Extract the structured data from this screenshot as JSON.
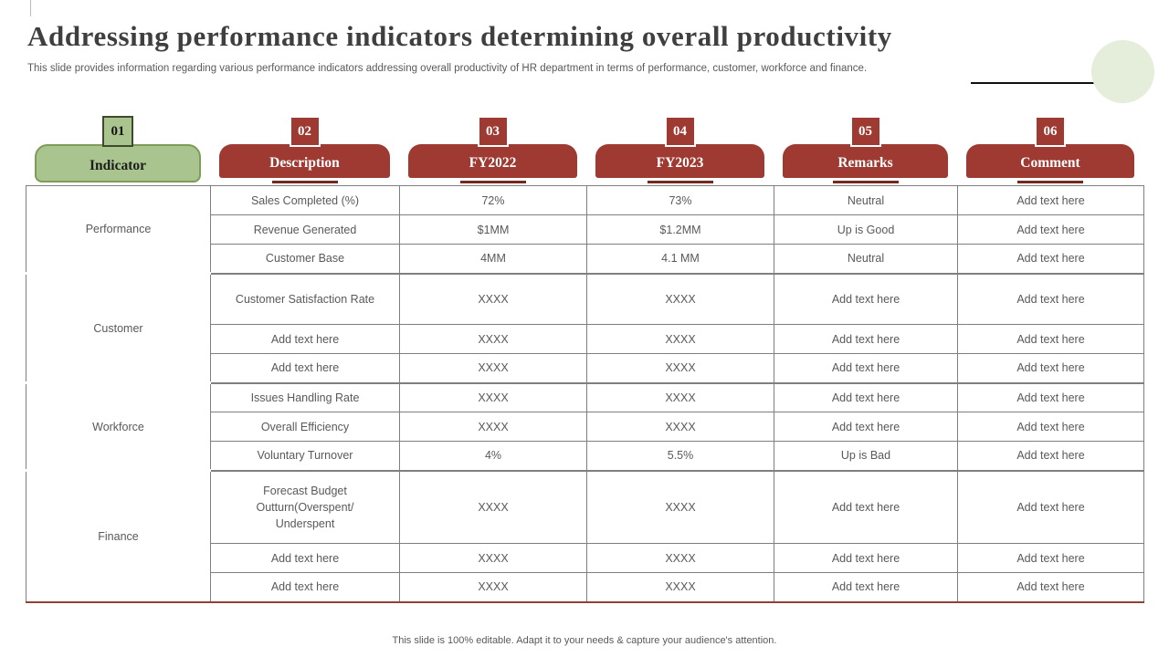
{
  "slide": {
    "title": "Addressing performance indicators determining overall productivity",
    "subtitle": "This slide provides information regarding various performance indicators addressing overall productivity of HR department in terms of performance, customer, workforce and finance.",
    "footer": "This slide is 100% editable. Adapt it to your needs & capture your audience's attention."
  },
  "colors": {
    "brick_red": "#9e3a32",
    "red_underline": "#75281f",
    "green_header": "#a9c48e",
    "green_header_border": "#7e9c58",
    "green_cell": "#afc897",
    "body_text_gray": "#595959",
    "grid_border_gray": "#7f7f7f",
    "table_bottom_maroon": "#8c4139",
    "circle_green": "#e4eeda",
    "title_gray": "#3f3f3f"
  },
  "table": {
    "columns": [
      {
        "number": "01",
        "label": "Indicator",
        "style": "green"
      },
      {
        "number": "02",
        "label": "Description",
        "style": "red"
      },
      {
        "number": "03",
        "label": "FY2022",
        "style": "red"
      },
      {
        "number": "04",
        "label": "FY2023",
        "style": "red"
      },
      {
        "number": "05",
        "label": "Remarks",
        "style": "red"
      },
      {
        "number": "06",
        "label": "Comment",
        "style": "red"
      }
    ],
    "groups": [
      {
        "indicator": "Performance",
        "rows": [
          {
            "description": "Sales Completed (%)",
            "fy2022": "72%",
            "fy2023": "73%",
            "remarks": "Neutral",
            "comment": "Add text here"
          },
          {
            "description": "Revenue Generated",
            "fy2022": "$1MM",
            "fy2023": "$1.2MM",
            "remarks": "Up is Good",
            "comment": "Add text here"
          },
          {
            "description": "Customer Base",
            "fy2022": "4MM",
            "fy2023": "4.1 MM",
            "remarks": "Neutral",
            "comment": "Add text here"
          }
        ]
      },
      {
        "indicator": "Customer",
        "rows": [
          {
            "description": "Customer Satisfaction Rate",
            "fy2022": "XXXX",
            "fy2023": "XXXX",
            "remarks": "Add text here",
            "comment": "Add text here"
          },
          {
            "description": "Add text here",
            "fy2022": "XXXX",
            "fy2023": "XXXX",
            "remarks": "Add text here",
            "comment": "Add text here"
          },
          {
            "description": "Add text here",
            "fy2022": "XXXX",
            "fy2023": "XXXX",
            "remarks": "Add text here",
            "comment": "Add text here"
          }
        ]
      },
      {
        "indicator": "Workforce",
        "rows": [
          {
            "description": "Issues Handling Rate",
            "fy2022": "XXXX",
            "fy2023": "XXXX",
            "remarks": "Add text here",
            "comment": "Add text here"
          },
          {
            "description": "Overall Efficiency",
            "fy2022": "XXXX",
            "fy2023": "XXXX",
            "remarks": "Add text here",
            "comment": "Add text here"
          },
          {
            "description": "Voluntary Turnover",
            "fy2022": "4%",
            "fy2023": "5.5%",
            "remarks": "Up is Bad",
            "comment": "Add text here"
          }
        ]
      },
      {
        "indicator": "Finance",
        "rows": [
          {
            "description": "Forecast Budget Outturn(Overspent/ Underspent",
            "fy2022": "XXXX",
            "fy2023": "XXXX",
            "remarks": "Add text here",
            "comment": "Add text here"
          },
          {
            "description": "Add text here",
            "fy2022": "XXXX",
            "fy2023": "XXXX",
            "remarks": "Add text here",
            "comment": "Add text here"
          },
          {
            "description": "Add text here",
            "fy2022": "XXXX",
            "fy2023": "XXXX",
            "remarks": "Add text here",
            "comment": "Add text here"
          }
        ]
      }
    ]
  }
}
